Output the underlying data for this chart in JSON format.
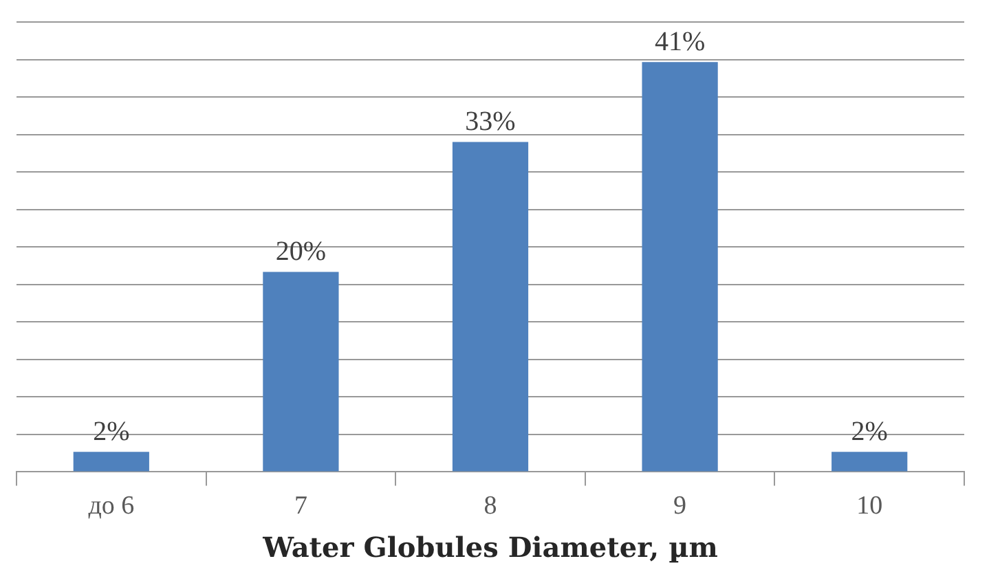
{
  "chart_data": {
    "type": "bar",
    "xlabel": "Water Globules Diameter, µm",
    "categories": [
      "до 6",
      "7",
      "8",
      "9",
      "10"
    ],
    "values": [
      2,
      20,
      33,
      41,
      2
    ],
    "value_labels": [
      "2%",
      "20%",
      "33%",
      "41%",
      "2%"
    ],
    "color": "#4f81bd",
    "ylim": [
      0,
      45
    ],
    "yticks": [
      {
        "value": 0,
        "label": null
      },
      {
        "value": 3.75,
        "label": null
      },
      {
        "value": 7.5,
        "label": null
      },
      {
        "value": 11.25,
        "label": null
      },
      {
        "value": 15,
        "label": null
      },
      {
        "value": 18.75,
        "label": null
      },
      {
        "value": 22.5,
        "label": null
      },
      {
        "value": 26.25,
        "label": null
      },
      {
        "value": 30,
        "label": null
      },
      {
        "value": 33.75,
        "label": null
      },
      {
        "value": 37.5,
        "label": null
      },
      {
        "value": 41.25,
        "label": null
      },
      {
        "value": 45,
        "label": null
      }
    ],
    "grid": "y",
    "tick_labels": "x"
  }
}
